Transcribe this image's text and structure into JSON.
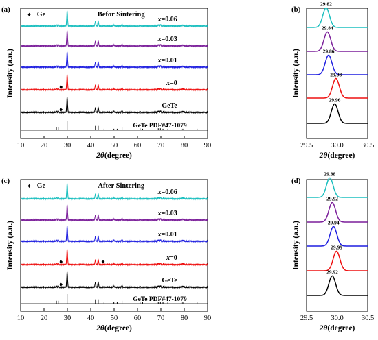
{
  "chart_data": [
    {
      "id": "a",
      "panel_label": "(a)",
      "type": "line",
      "title": "Befor Sintering",
      "legend": {
        "symbol": "♦",
        "label": "Ge"
      },
      "xlabel_sym": "2θ",
      "xlabel_unit": "(degree)",
      "ylabel": "Intensity (a.u.)",
      "xlim": [
        10,
        90
      ],
      "xticks": [
        "10",
        "20",
        "30",
        "40",
        "50",
        "60",
        "70",
        "80",
        "90"
      ],
      "series": [
        {
          "name": "x=0.06",
          "x_prefix": "x",
          "x_value": "=0.06",
          "color": "#1bbfbf",
          "ge_markers": []
        },
        {
          "name": "x=0.03",
          "x_prefix": "x",
          "x_value": "=0.03",
          "color": "#7b1f9a",
          "ge_markers": []
        },
        {
          "name": "x=0.01",
          "x_prefix": "x",
          "x_value": "=0.01",
          "color": "#1f1fe0",
          "ge_markers": []
        },
        {
          "name": "x=0",
          "x_prefix": "x",
          "x_value": "=0",
          "color": "#ee1111",
          "ge_markers": [
            27.3
          ]
        },
        {
          "name": "GeTe",
          "label": "GeTe",
          "color": "#000000",
          "ge_markers": [
            27.3
          ]
        }
      ],
      "reference": {
        "label": "GeTe PDF#47-1079",
        "x": [
          25.3,
          26.1,
          29.9,
          42.0,
          43.2,
          45.7,
          49.9,
          51.3,
          53.4,
          61.1,
          62.2,
          68.9,
          69.8,
          70.9,
          73.0,
          78.7,
          79.4,
          82.5,
          85.5
        ],
        "rel": [
          0.3,
          0.3,
          1.0,
          0.45,
          0.45,
          0.15,
          0.15,
          0.15,
          0.3,
          0.2,
          0.15,
          0.2,
          0.2,
          0.15,
          0.15,
          0.15,
          0.15,
          0.15,
          0.15
        ]
      },
      "peaks": {
        "x": [
          25.3,
          26.1,
          29.9,
          42.0,
          43.2,
          45.7,
          49.9,
          53.4,
          61.1,
          68.9,
          69.8,
          71.2,
          78.7,
          79.4,
          82.5
        ],
        "rel": [
          0.09,
          0.09,
          1.0,
          0.3,
          0.32,
          0.05,
          0.06,
          0.12,
          0.05,
          0.08,
          0.1,
          0.06,
          0.05,
          0.07,
          0.04
        ]
      }
    },
    {
      "id": "b",
      "panel_label": "(b)",
      "type": "line",
      "xlabel_sym": "2θ",
      "xlabel_unit": "(degree)",
      "ylabel": "Intensity (a.u.)",
      "xlim": [
        29.5,
        30.5
      ],
      "xticks": [
        "29.5",
        "30.0",
        "30.5"
      ],
      "series": [
        {
          "name": "x=0.06",
          "peak": 29.82,
          "peak_label": "29.82",
          "color": "#1bbfbf"
        },
        {
          "name": "x=0.03",
          "peak": 29.84,
          "peak_label": "29.84",
          "color": "#7b1f9a"
        },
        {
          "name": "x=0.01",
          "peak": 29.86,
          "peak_label": "29.86",
          "color": "#1f1fe0"
        },
        {
          "name": "x=0",
          "peak": 29.98,
          "peak_label": "29.98",
          "color": "#ee1111"
        },
        {
          "name": "GeTe",
          "peak": 29.96,
          "peak_label": "29.96",
          "color": "#000000"
        }
      ]
    },
    {
      "id": "c",
      "panel_label": "(c)",
      "type": "line",
      "title": "After Sintering",
      "legend": {
        "symbol": "♦",
        "label": "Ge"
      },
      "xlabel_sym": "2θ",
      "xlabel_unit": "(degree)",
      "ylabel": "Intensity (a.u.)",
      "xlim": [
        10,
        90
      ],
      "xticks": [
        "10",
        "20",
        "30",
        "40",
        "50",
        "60",
        "70",
        "80",
        "90"
      ],
      "series": [
        {
          "name": "x=0.06",
          "x_prefix": "x",
          "x_value": "=0.06",
          "color": "#1bbfbf",
          "ge_markers": []
        },
        {
          "name": "x=0.03",
          "x_prefix": "x",
          "x_value": "=0.03",
          "color": "#7b1f9a",
          "ge_markers": []
        },
        {
          "name": "x=0.01",
          "x_prefix": "x",
          "x_value": "=0.01",
          "color": "#1f1fe0",
          "ge_markers": []
        },
        {
          "name": "x=0",
          "x_prefix": "x",
          "x_value": "=0",
          "color": "#ee1111",
          "ge_markers": [
            27.3,
            45.3
          ]
        },
        {
          "name": "GeTe",
          "label": "GeTe",
          "color": "#000000",
          "ge_markers": [
            27.3
          ]
        }
      ],
      "reference": {
        "label": "GeTe PDF#47-1079",
        "x": [
          25.3,
          26.1,
          29.9,
          42.0,
          43.2,
          45.7,
          49.9,
          51.3,
          53.4,
          61.1,
          62.2,
          68.9,
          69.8,
          70.9,
          73.0,
          78.7,
          79.4,
          82.5,
          85.5
        ],
        "rel": [
          0.3,
          0.3,
          1.0,
          0.45,
          0.45,
          0.15,
          0.15,
          0.15,
          0.3,
          0.2,
          0.15,
          0.2,
          0.2,
          0.15,
          0.15,
          0.15,
          0.15,
          0.15,
          0.15
        ]
      },
      "peaks": {
        "x": [
          25.3,
          26.1,
          29.9,
          42.0,
          43.2,
          45.7,
          49.9,
          53.4,
          61.1,
          68.9,
          69.8,
          71.2,
          78.7,
          79.4,
          82.5
        ],
        "rel": [
          0.09,
          0.09,
          1.0,
          0.3,
          0.32,
          0.05,
          0.06,
          0.12,
          0.05,
          0.08,
          0.1,
          0.06,
          0.05,
          0.07,
          0.04
        ]
      }
    },
    {
      "id": "d",
      "panel_label": "(d)",
      "type": "line",
      "xlabel_sym": "2θ",
      "xlabel_unit": "(degree)",
      "ylabel": "Intensity (a.u.)",
      "xlim": [
        29.5,
        30.5
      ],
      "xticks": [
        "29.5",
        "30.0",
        "30.5"
      ],
      "series": [
        {
          "name": "x=0.06",
          "peak": 29.88,
          "peak_label": "29.88",
          "color": "#1bbfbf"
        },
        {
          "name": "x=0.03",
          "peak": 29.92,
          "peak_label": "29.92",
          "color": "#7b1f9a"
        },
        {
          "name": "x=0.01",
          "peak": 29.94,
          "peak_label": "29.94",
          "color": "#1f1fe0"
        },
        {
          "name": "x=0",
          "peak": 29.99,
          "peak_label": "29.99",
          "color": "#ee1111"
        },
        {
          "name": "GeTe",
          "peak": 29.92,
          "peak_label": "29.92",
          "color": "#000000"
        }
      ]
    }
  ]
}
